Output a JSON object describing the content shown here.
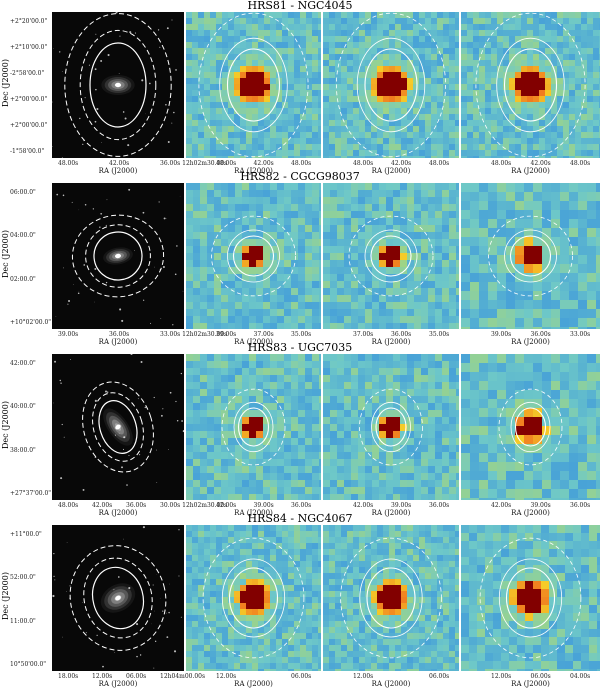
{
  "rows": [
    {
      "title": "HRS81 - NGC4045",
      "dec_label": "Dec (J2000)",
      "dec_ticks": [
        "+2°20'00.0\"",
        "+2°10'00.0\"",
        "-2°58'00.0\"",
        "+2°00'00.0\"",
        "+2°00'00.0\"",
        "-1°58'00.0\""
      ],
      "optical_xticks": [
        "48.00s",
        "42.00s",
        "36.00s 12h02m30.00s"
      ],
      "map_xticks": [
        [
          "48.00s",
          "42.00s",
          "48.00s"
        ],
        [
          "48.00s",
          "42.00s",
          "48.00s"
        ],
        [
          "48.00s",
          "42.00s",
          "48.00s"
        ]
      ],
      "ra_label": "RA (J2000)"
    },
    {
      "title": "HRS82 - CGCG98037",
      "dec_label": "Dec (J2000)",
      "dec_ticks": [
        "06:00.0\"",
        "04:00.0\"",
        "02:00.0\"",
        "+10°02'00.0\""
      ],
      "optical_xticks": [
        "39.00s",
        "36.00s",
        "33.00s 12h02m30.00s"
      ],
      "map_xticks": [
        [
          "39.00s",
          "37.00s",
          "35.00s"
        ],
        [
          "37.00s",
          "36.00s",
          "35.00s"
        ],
        [
          "39.00s",
          "36.00s",
          "33.00s"
        ]
      ],
      "ra_label": "RA (J2000)"
    },
    {
      "title": "HRS83 - UGC7035",
      "dec_label": "Dec (J2000)",
      "dec_ticks": [
        "42:00.0\"",
        "40:00.0\"",
        "38:00.0\"",
        "+27°37'00.0\""
      ],
      "optical_xticks": [
        "48.00s",
        "42.00s",
        "36.00s",
        "30.00s 12h02m30.00s"
      ],
      "map_xticks": [
        [
          "42.00s",
          "39.00s",
          "36.00s"
        ],
        [
          "42.00s",
          "39.00s",
          "36.00s"
        ],
        [
          "42.00s",
          "39.00s",
          "36.00s"
        ]
      ],
      "ra_label": "RA (J2000)"
    },
    {
      "title": "HRS84 - NGC4067",
      "dec_label": "Dec (J2000)",
      "dec_ticks": [
        "+11°00.0\"",
        "52:00.0\"",
        "11:00.0\"",
        "10°50'00.0\""
      ],
      "optical_xticks": [
        "18.00s",
        "12.00s",
        "06.00s",
        "12h04m00.00s"
      ],
      "map_xticks": [
        [
          "12.00s",
          "06.00s"
        ],
        [
          "12.00s",
          "06.00s"
        ],
        [
          "12.00s",
          "06.00s",
          "04.00s"
        ]
      ],
      "ra_label": "RA (J2000)"
    }
  ],
  "colors": {
    "hot": "#8b0000",
    "mid": "#e63b16",
    "warm": "#f6d21e",
    "cool": "#5ec3cf",
    "bg": "#2a74c8",
    "ellipse": "#ffffff"
  }
}
